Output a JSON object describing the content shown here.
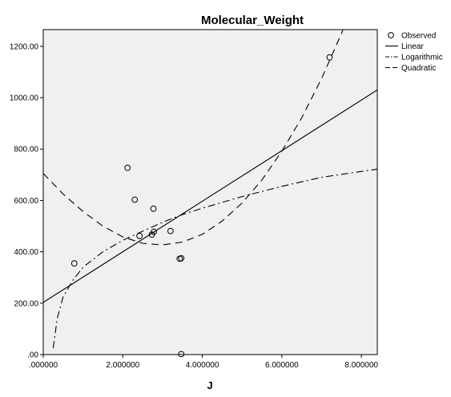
{
  "chart_data": {
    "type": "scatter",
    "title": "Molecular_Weight",
    "xlabel": "J",
    "ylabel": "",
    "xlim": [
      0,
      8.4
    ],
    "ylim": [
      0,
      1265
    ],
    "x_ticks": [
      0,
      2,
      4,
      6,
      8
    ],
    "x_tick_labels": [
      ".000000",
      "2.000000",
      "4.000000",
      "6.000000",
      "8.000000"
    ],
    "y_ticks": [
      0,
      200,
      400,
      600,
      800,
      1000,
      1200
    ],
    "y_tick_labels": [
      ".00",
      "200.00",
      "400.00",
      "600.00",
      "800.00",
      "1000.00",
      "1200.00"
    ],
    "grid": false,
    "legend_position": "right",
    "plot_background": "#f0f0f0",
    "series": [
      {
        "name": "Observed",
        "type": "scatter",
        "marker": "open-circle",
        "points": [
          [
            0.78,
            355
          ],
          [
            2.12,
            727
          ],
          [
            2.3,
            603
          ],
          [
            2.42,
            462
          ],
          [
            2.73,
            467
          ],
          [
            2.77,
            568
          ],
          [
            2.78,
            478
          ],
          [
            3.2,
            481
          ],
          [
            3.43,
            373
          ],
          [
            3.47,
            375
          ],
          [
            3.47,
            2
          ],
          [
            7.2,
            1157
          ]
        ]
      },
      {
        "name": "Linear",
        "type": "line",
        "dash": "solid",
        "points": [
          [
            0,
            203
          ],
          [
            8.4,
            1030
          ]
        ]
      },
      {
        "name": "Logarithmic",
        "type": "line",
        "dash": "dash-dot",
        "points": [
          [
            0.25,
            25
          ],
          [
            0.35,
            140
          ],
          [
            0.5,
            225
          ],
          [
            0.75,
            290
          ],
          [
            1.0,
            340
          ],
          [
            1.5,
            400
          ],
          [
            2.0,
            445
          ],
          [
            2.5,
            480
          ],
          [
            3.0,
            515
          ],
          [
            3.5,
            545
          ],
          [
            4.0,
            570
          ],
          [
            5.0,
            615
          ],
          [
            6.0,
            655
          ],
          [
            7.0,
            690
          ],
          [
            8.4,
            722
          ]
        ]
      },
      {
        "name": "Quadratic",
        "type": "line",
        "dash": "dash",
        "points": [
          [
            0,
            705
          ],
          [
            0.5,
            625
          ],
          [
            1.0,
            557
          ],
          [
            1.5,
            500
          ],
          [
            2.0,
            458
          ],
          [
            2.5,
            433
          ],
          [
            3.0,
            427
          ],
          [
            3.5,
            438
          ],
          [
            4.0,
            468
          ],
          [
            4.5,
            520
          ],
          [
            5.0,
            590
          ],
          [
            5.5,
            680
          ],
          [
            6.0,
            792
          ],
          [
            6.5,
            922
          ],
          [
            7.0,
            1075
          ],
          [
            7.5,
            1250
          ],
          [
            7.6,
            1290
          ]
        ]
      }
    ]
  }
}
